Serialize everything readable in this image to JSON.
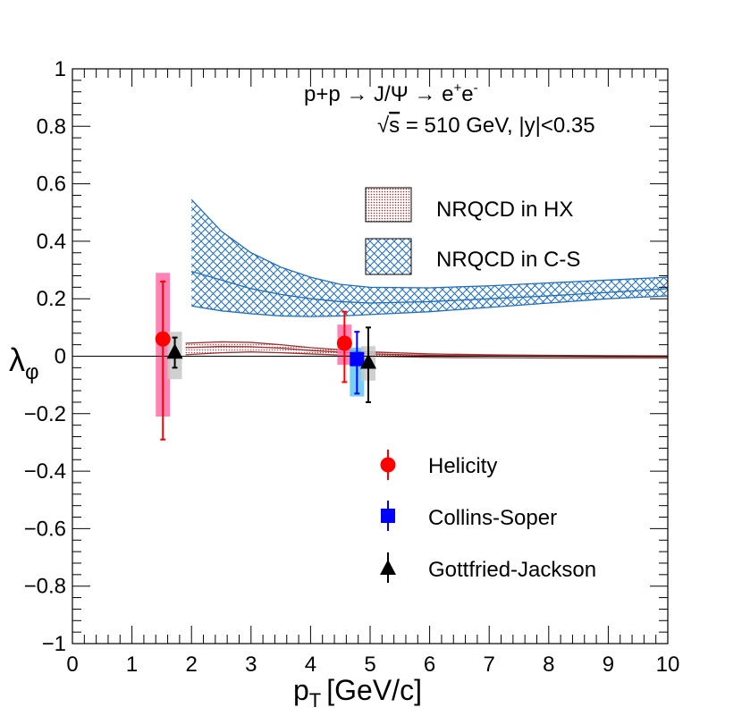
{
  "chart_data": {
    "type": "scatter",
    "xlabel_main": "p",
    "xlabel_sub": "T",
    "xlabel_unit": "[GeV/c]",
    "ylabel_main": "λ",
    "ylabel_sub": "φ",
    "xlim": [
      0,
      10
    ],
    "ylim": [
      -1,
      1
    ],
    "x_ticks": [
      0,
      1,
      2,
      3,
      4,
      5,
      6,
      7,
      8,
      9,
      10
    ],
    "x_tick_labels": [
      "0",
      "1",
      "2",
      "3",
      "4",
      "5",
      "6",
      "7",
      "8",
      "9",
      "10"
    ],
    "y_ticks": [
      -1,
      -0.8,
      -0.6,
      -0.4,
      -0.2,
      0,
      0.2,
      0.4,
      0.6,
      0.8,
      1
    ],
    "y_tick_labels": [
      "−1",
      "−0.8",
      "−0.6",
      "−0.4",
      "−0.2",
      "0",
      "0.2",
      "0.4",
      "0.6",
      "0.8",
      "1"
    ],
    "annotation_line1_pre": "p+p → J/Ψ → e",
    "annotation_line1_sup1": "+",
    "annotation_line1_mid": "e",
    "annotation_line1_sup2": "-",
    "annotation_line2_sqrt": "√",
    "annotation_line2_s": "s",
    "annotation_line2_rest": " = 510 GeV, |y|<0.35",
    "bands": [
      {
        "name": "NRQCD in HX",
        "color": "#a03030",
        "x": [
          1.9,
          2.5,
          3.0,
          3.5,
          4.0,
          5.0,
          6.0,
          7.0,
          8.0,
          9.0,
          10.0
        ],
        "upper": [
          0.045,
          0.05,
          0.048,
          0.04,
          0.03,
          0.015,
          0.008,
          0.005,
          0.003,
          0.002,
          0.001
        ],
        "central": [
          0.03,
          0.034,
          0.033,
          0.028,
          0.02,
          0.008,
          0.003,
          0.001,
          0.0,
          -0.001,
          -0.002
        ],
        "lower": [
          0.005,
          0.012,
          0.015,
          0.012,
          0.008,
          0.0,
          -0.004,
          -0.005,
          -0.006,
          -0.006,
          -0.006
        ]
      },
      {
        "name": "NRQCD in C-S",
        "color": "#1f6fbf",
        "x": [
          2.0,
          2.5,
          3.0,
          3.5,
          4.0,
          4.5,
          5.0,
          6.0,
          7.0,
          8.0,
          9.0,
          10.0
        ],
        "upper": [
          0.545,
          0.435,
          0.36,
          0.31,
          0.275,
          0.25,
          0.24,
          0.238,
          0.245,
          0.255,
          0.265,
          0.275
        ],
        "central": [
          0.295,
          0.265,
          0.235,
          0.215,
          0.2,
          0.19,
          0.185,
          0.19,
          0.2,
          0.21,
          0.222,
          0.235
        ],
        "lower": [
          0.175,
          0.158,
          0.148,
          0.14,
          0.138,
          0.14,
          0.145,
          0.155,
          0.17,
          0.185,
          0.2,
          0.21
        ]
      }
    ],
    "series": [
      {
        "name": "Helicity",
        "color": "#ff0000",
        "marker": "circle",
        "syscolor": "#ff6fa8",
        "points": [
          {
            "x": 1.52,
            "y": 0.06,
            "err_lo": 0.35,
            "err_hi": 0.2,
            "sys_lo": 0.27,
            "sys_hi": 0.23
          },
          {
            "x": 4.57,
            "y": 0.045,
            "err_lo": 0.135,
            "err_hi": 0.11,
            "sys_lo": 0.075,
            "sys_hi": 0.065
          }
        ]
      },
      {
        "name": "Collins-Soper",
        "color": "#0000ff",
        "marker": "square",
        "syscolor": "#5fc8f4",
        "points": [
          {
            "x": 4.78,
            "y": -0.01,
            "err_lo": 0.12,
            "err_hi": 0.095,
            "sys_lo": 0.13,
            "sys_hi": 0.04
          }
        ]
      },
      {
        "name": "Gottfried-Jackson",
        "color": "#000000",
        "marker": "triangle",
        "syscolor": "#c8c8c8",
        "points": [
          {
            "x": 1.72,
            "y": 0.01,
            "err_lo": 0.05,
            "err_hi": 0.055,
            "sys_lo": 0.09,
            "sys_hi": 0.075
          },
          {
            "x": 4.97,
            "y": -0.025,
            "err_lo": 0.135,
            "err_hi": 0.125,
            "sys_lo": 0.06,
            "sys_hi": 0.06
          }
        ]
      }
    ]
  }
}
